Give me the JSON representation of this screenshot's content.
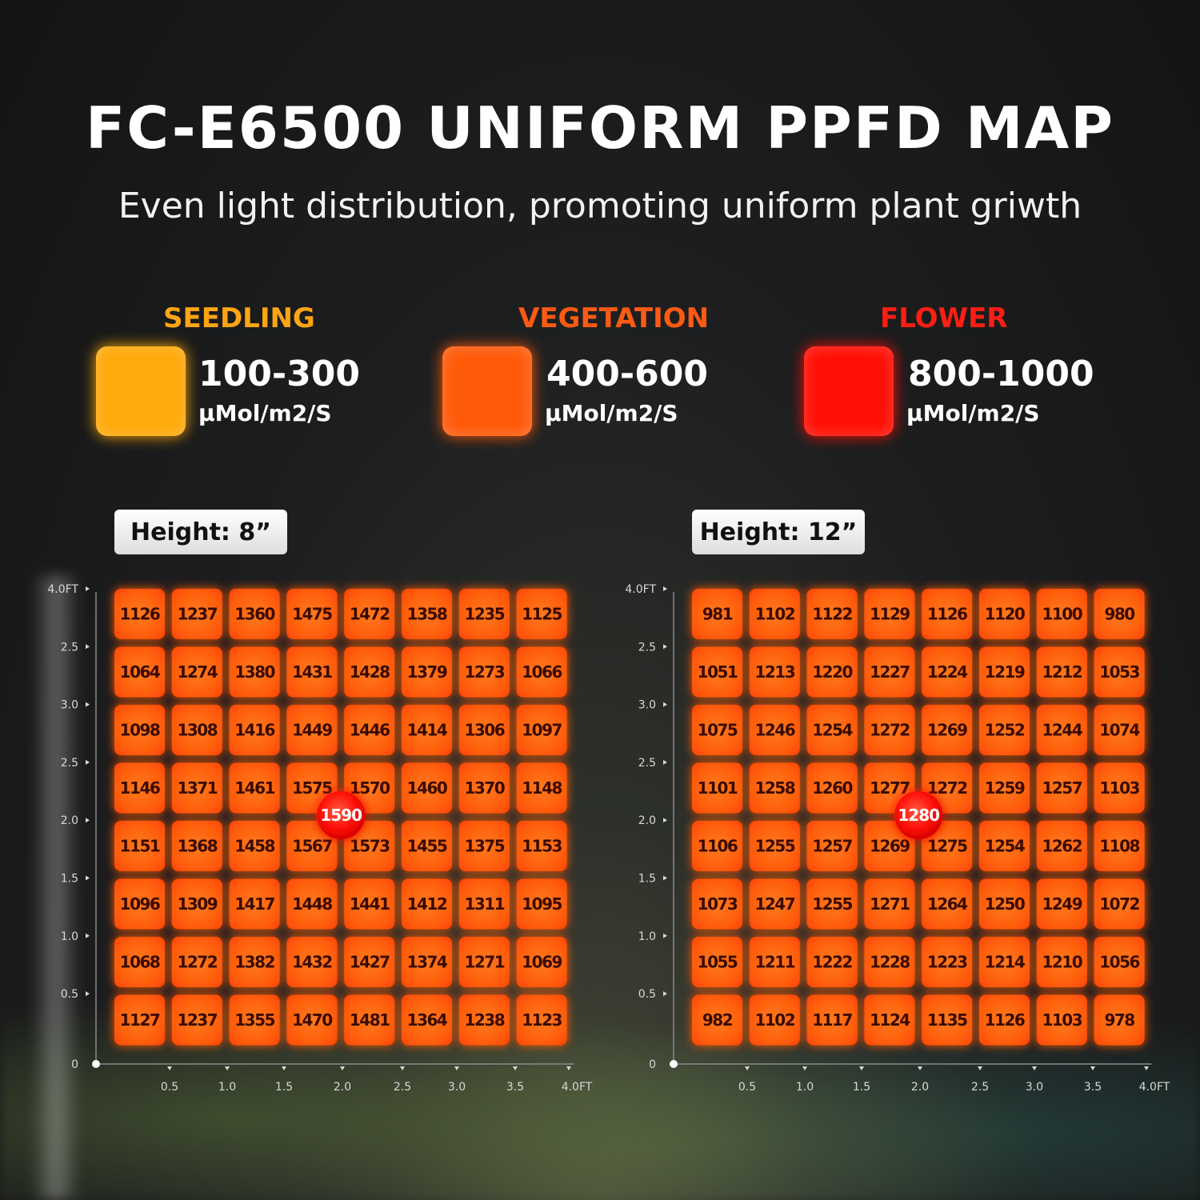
{
  "title": "FC-E6500 UNIFORM PPFD MAP",
  "subtitle": "Even light distribution, promoting uniform plant griwth",
  "legend": [
    {
      "name": "SEEDLING",
      "range": "100-300",
      "unit": "μMol/m2/S",
      "color": "#ffa90a",
      "name_color": "#ffa514"
    },
    {
      "name": "VEGETATION",
      "range": "400-600",
      "unit": "μMol/m2/S",
      "color": "#ff5a0a",
      "name_color": "#ff5a14"
    },
    {
      "name": "FLOWER",
      "range": "800-1000",
      "unit": "μMol/m2/S",
      "color": "#ff0f05",
      "name_color": "#ff1e14"
    }
  ],
  "chart_data": [
    {
      "type": "heatmap",
      "title": "Height: 8”",
      "peak": "1590",
      "y_tick_labels": [
        "4.0FT",
        "2.5",
        "3.0",
        "2.5",
        "2.0",
        "1.5",
        "1.0",
        "0.5",
        "0"
      ],
      "x_tick_labels": [
        "0.5",
        "1.0",
        "1.5",
        "2.0",
        "2.5",
        "3.0",
        "3.5",
        "4.0FT"
      ],
      "values": [
        [
          1126,
          1237,
          1360,
          1475,
          1472,
          1358,
          1235,
          1125
        ],
        [
          1064,
          1274,
          1380,
          1431,
          1428,
          1379,
          1273,
          1066
        ],
        [
          1098,
          1308,
          1416,
          1449,
          1446,
          1414,
          1306,
          1097
        ],
        [
          1146,
          1371,
          1461,
          1575,
          1570,
          1460,
          1370,
          1148
        ],
        [
          1151,
          1368,
          1458,
          1567,
          1573,
          1455,
          1375,
          1153
        ],
        [
          1096,
          1309,
          1417,
          1448,
          1441,
          1412,
          1311,
          1095
        ],
        [
          1068,
          1272,
          1382,
          1432,
          1427,
          1374,
          1271,
          1069
        ],
        [
          1127,
          1237,
          1355,
          1470,
          1481,
          1364,
          1238,
          1123
        ]
      ]
    },
    {
      "type": "heatmap",
      "title": "Height: 12”",
      "peak": "1280",
      "y_tick_labels": [
        "4.0FT",
        "2.5",
        "3.0",
        "2.5",
        "2.0",
        "1.5",
        "1.0",
        "0.5",
        "0"
      ],
      "x_tick_labels": [
        "0.5",
        "1.0",
        "1.5",
        "2.0",
        "2.5",
        "3.0",
        "3.5",
        "4.0FT"
      ],
      "values": [
        [
          981,
          1102,
          1122,
          1129,
          1126,
          1120,
          1100,
          980
        ],
        [
          1051,
          1213,
          1220,
          1227,
          1224,
          1219,
          1212,
          1053
        ],
        [
          1075,
          1246,
          1254,
          1272,
          1269,
          1252,
          1244,
          1074
        ],
        [
          1101,
          1258,
          1260,
          1277,
          1272,
          1259,
          1257,
          1103
        ],
        [
          1106,
          1255,
          1257,
          1269,
          1275,
          1254,
          1262,
          1108
        ],
        [
          1073,
          1247,
          1255,
          1271,
          1264,
          1250,
          1249,
          1072
        ],
        [
          1055,
          1211,
          1222,
          1228,
          1223,
          1214,
          1210,
          1056
        ],
        [
          982,
          1102,
          1117,
          1124,
          1135,
          1126,
          1103,
          978
        ]
      ]
    }
  ]
}
